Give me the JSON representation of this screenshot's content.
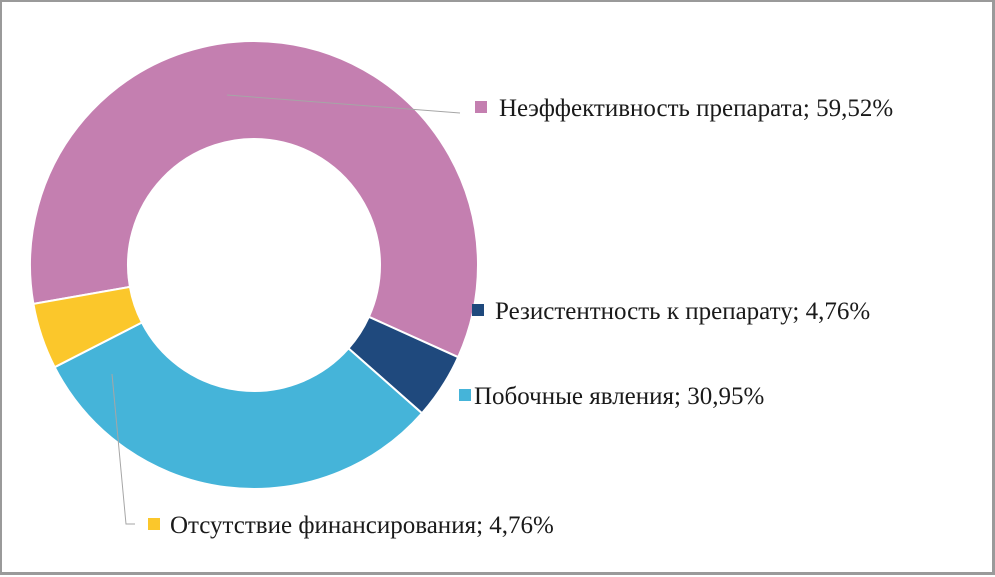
{
  "chart_data": {
    "type": "pie",
    "donut": true,
    "title": "",
    "categories": [
      "Неэффективность препарата",
      "Резистентность к препарату",
      "Побочные явления",
      "Отсутствие финансирования"
    ],
    "values": [
      59.52,
      4.76,
      30.95,
      4.76
    ],
    "colors": [
      "#c47fb0",
      "#1f497d",
      "#45b4d9",
      "#fbc72b"
    ],
    "labels": [
      "Неэффективность препарата; 59,52%",
      "Резистентность к препарату; 4,76%",
      "Побочные явления; 30,95%",
      "Отсутствие финансирования; 4,76%"
    ],
    "legend": "none",
    "label_position": "outside-right"
  }
}
